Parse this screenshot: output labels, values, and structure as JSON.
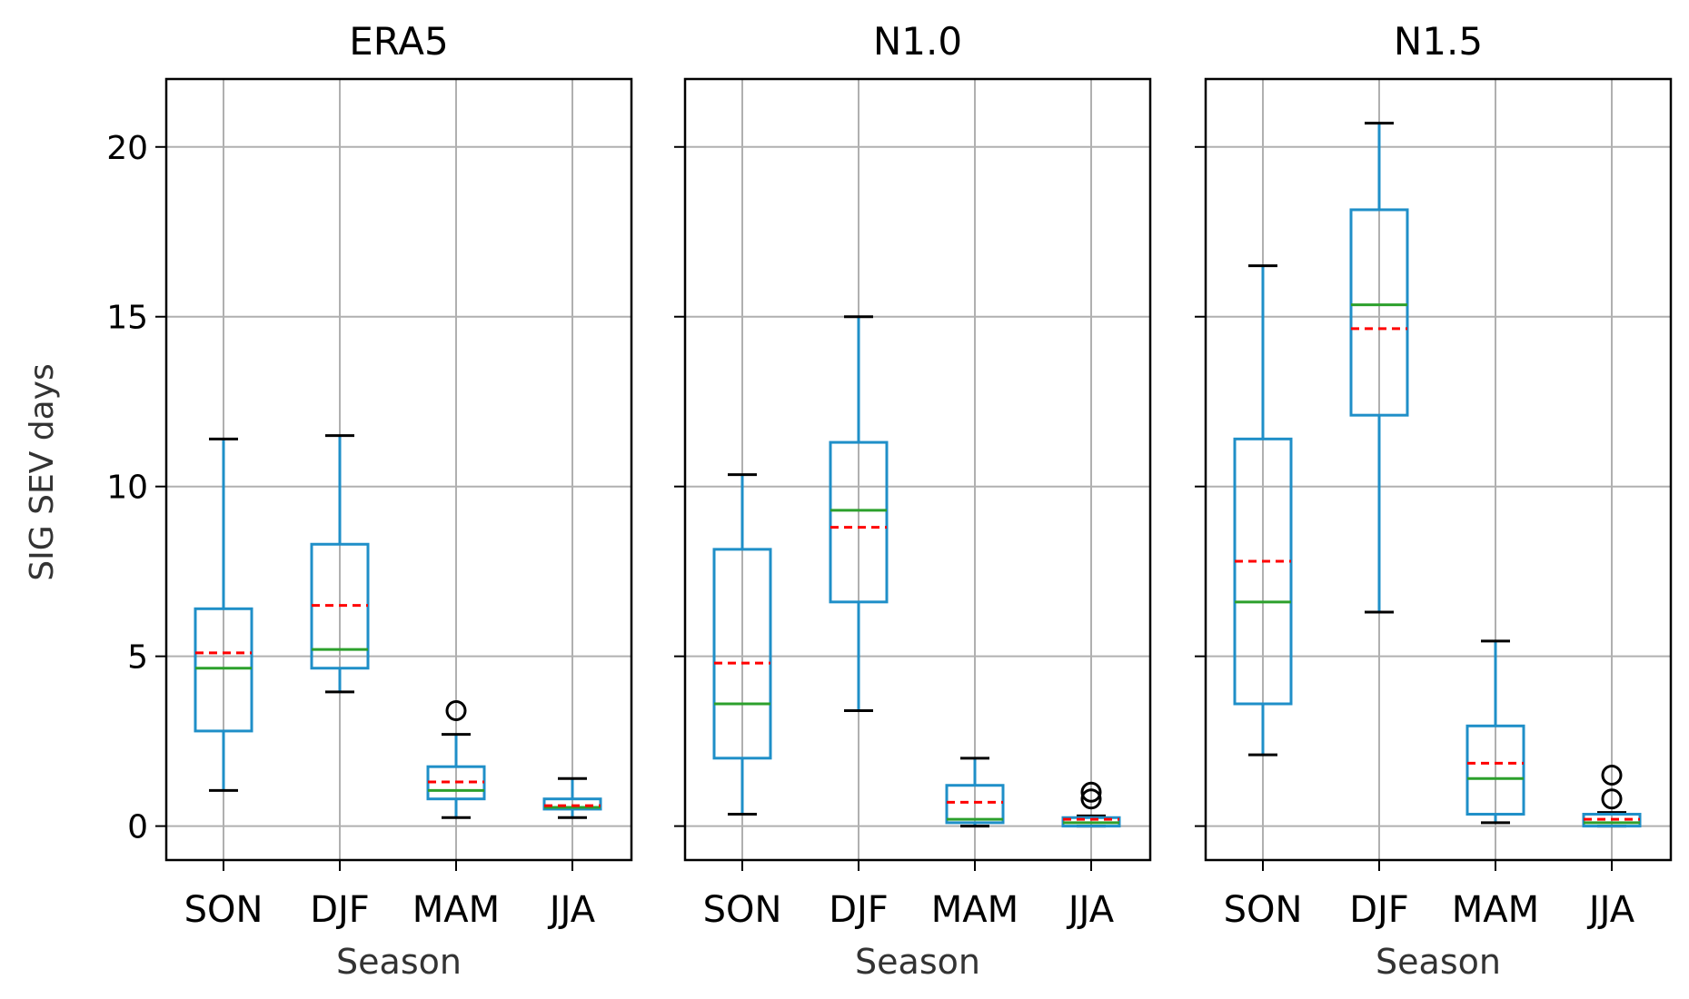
{
  "chart_data": {
    "type": "boxplot",
    "ylabel": "SIG SEV days",
    "xlabel": "Season",
    "ylim": [
      -1,
      22
    ],
    "yticks": [
      0,
      5,
      10,
      15,
      20
    ],
    "grid": true,
    "sharey": true,
    "categories": [
      "SON",
      "DJF",
      "MAM",
      "JJA"
    ],
    "colors": {
      "box": "#1f8fc8",
      "median": "#2ca02c",
      "mean": "#ff0000",
      "whisker_cap": "#000000",
      "outlier": "#000000",
      "grid": "#b0b0b0",
      "axes": "#000000"
    },
    "panels": [
      {
        "title": "ERA5",
        "boxes": [
          {
            "category": "SON",
            "whisker_low": 1.05,
            "q1": 2.8,
            "median": 4.65,
            "mean": 5.1,
            "q3": 6.4,
            "whisker_high": 11.4,
            "outliers": []
          },
          {
            "category": "DJF",
            "whisker_low": 3.95,
            "q1": 4.65,
            "median": 5.2,
            "mean": 6.5,
            "q3": 8.3,
            "whisker_high": 11.5,
            "outliers": []
          },
          {
            "category": "MAM",
            "whisker_low": 0.25,
            "q1": 0.8,
            "median": 1.05,
            "mean": 1.3,
            "q3": 1.75,
            "whisker_high": 2.7,
            "outliers": [
              3.4
            ]
          },
          {
            "category": "JJA",
            "whisker_low": 0.25,
            "q1": 0.5,
            "median": 0.55,
            "mean": 0.6,
            "q3": 0.8,
            "whisker_high": 1.4,
            "outliers": []
          }
        ]
      },
      {
        "title": "N1.0",
        "boxes": [
          {
            "category": "SON",
            "whisker_low": 0.35,
            "q1": 2.0,
            "median": 3.6,
            "mean": 4.8,
            "q3": 8.15,
            "whisker_high": 10.35,
            "outliers": []
          },
          {
            "category": "DJF",
            "whisker_low": 3.4,
            "q1": 6.6,
            "median": 9.3,
            "mean": 8.8,
            "q3": 11.3,
            "whisker_high": 15.0,
            "outliers": []
          },
          {
            "category": "MAM",
            "whisker_low": 0.0,
            "q1": 0.1,
            "median": 0.2,
            "mean": 0.7,
            "q3": 1.2,
            "whisker_high": 2.0,
            "outliers": []
          },
          {
            "category": "JJA",
            "whisker_low": 0.0,
            "q1": 0.0,
            "median": 0.1,
            "mean": 0.2,
            "q3": 0.25,
            "whisker_high": 0.3,
            "outliers": [
              0.8,
              1.0
            ]
          }
        ]
      },
      {
        "title": "N1.5",
        "boxes": [
          {
            "category": "SON",
            "whisker_low": 2.1,
            "q1": 3.6,
            "median": 6.6,
            "mean": 7.8,
            "q3": 11.4,
            "whisker_high": 16.5,
            "outliers": []
          },
          {
            "category": "DJF",
            "whisker_low": 6.3,
            "q1": 12.1,
            "median": 15.35,
            "mean": 14.65,
            "q3": 18.15,
            "whisker_high": 20.7,
            "outliers": []
          },
          {
            "category": "MAM",
            "whisker_low": 0.1,
            "q1": 0.35,
            "median": 1.4,
            "mean": 1.85,
            "q3": 2.95,
            "whisker_high": 5.45,
            "outliers": []
          },
          {
            "category": "JJA",
            "whisker_low": 0.0,
            "q1": 0.0,
            "median": 0.1,
            "mean": 0.2,
            "q3": 0.35,
            "whisker_high": 0.4,
            "outliers": [
              0.8,
              1.5
            ]
          }
        ]
      }
    ]
  }
}
